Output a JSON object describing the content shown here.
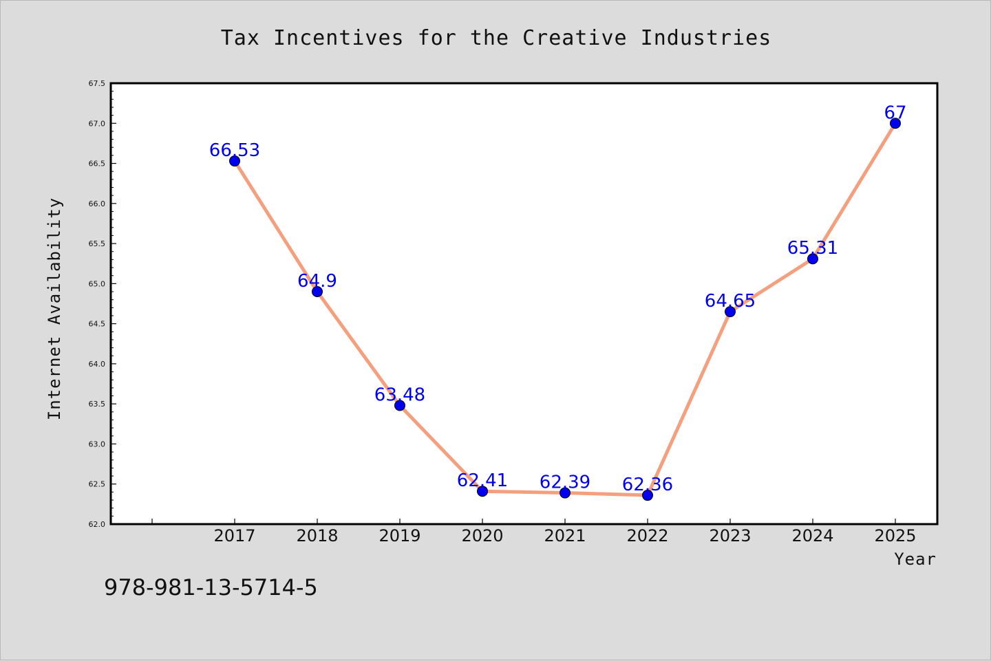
{
  "chart_data": {
    "type": "line",
    "title": "Tax Incentives for the Creative Industries",
    "xlabel": "Year",
    "ylabel": "Internet Availability",
    "categories": [
      "2017",
      "2018",
      "2019",
      "2020",
      "2021",
      "2022",
      "2023",
      "2024",
      "2025"
    ],
    "values": [
      66.53,
      64.9,
      63.48,
      62.41,
      62.39,
      62.36,
      64.65,
      65.31,
      67
    ],
    "data_labels": [
      "66.53",
      "64.9",
      "63.48",
      "62.41",
      "62.39",
      "62.36",
      "64.65",
      "65.31",
      "67"
    ],
    "ylim": [
      62.0,
      67.5
    ],
    "yticks": [
      "62.0",
      "62.5",
      "63.0",
      "63.5",
      "64.0",
      "64.5",
      "65.0",
      "65.5",
      "66.0",
      "66.5",
      "67.0",
      "67.5"
    ],
    "grid": false,
    "line_color": "#f4a07e",
    "marker_color": "#0000ee",
    "label_color": "#0000ee"
  },
  "footer_text": "978-981-13-5714-5"
}
